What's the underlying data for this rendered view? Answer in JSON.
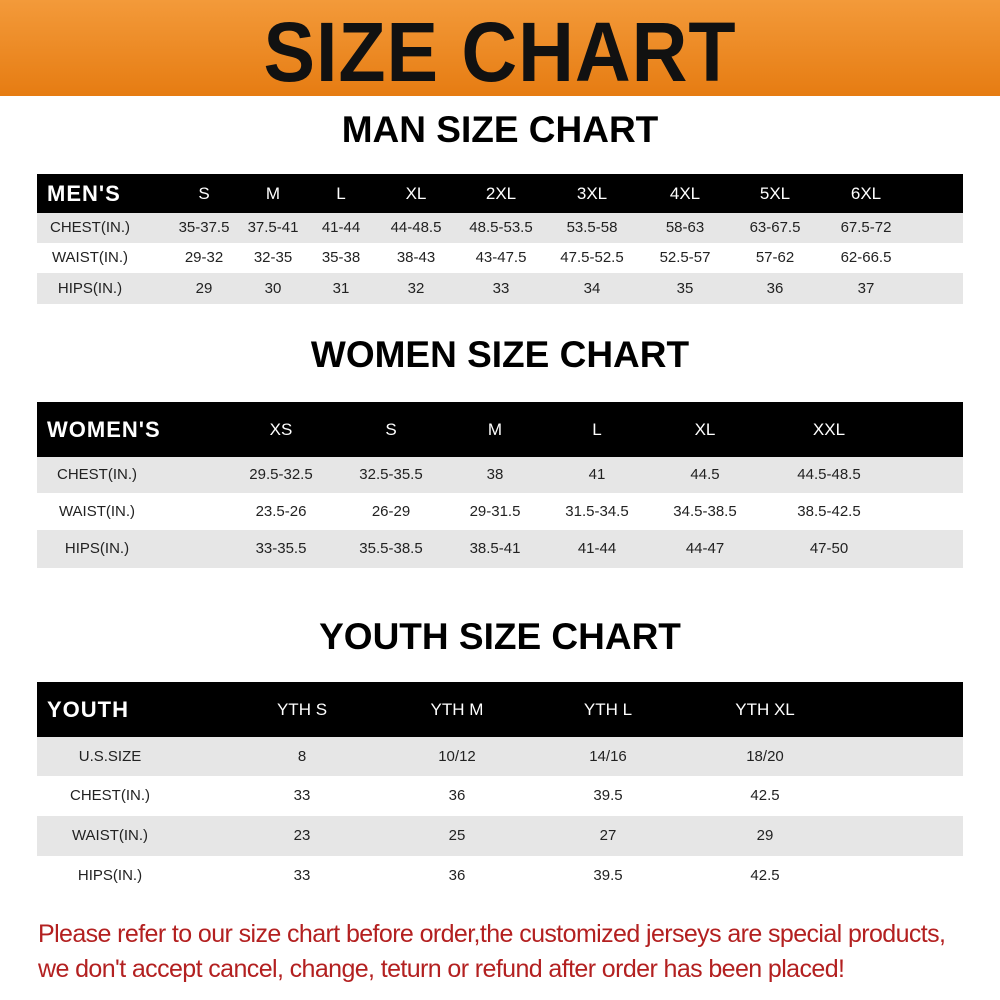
{
  "title": "SIZE CHART",
  "men": {
    "title": "MAN SIZE CHART",
    "header": [
      "MEN'S",
      "S",
      "M",
      "L",
      "XL",
      "2XL",
      "3XL",
      "4XL",
      "5XL",
      "6XL"
    ],
    "rows": [
      [
        "CHEST(IN.)",
        "35-37.5",
        "37.5-41",
        "41-44",
        "44-48.5",
        "48.5-53.5",
        "53.5-58",
        "58-63",
        "63-67.5",
        "67.5-72"
      ],
      [
        "WAIST(IN.)",
        "29-32",
        "32-35",
        "35-38",
        "38-43",
        "43-47.5",
        "47.5-52.5",
        "52.5-57",
        "57-62",
        "62-66.5"
      ],
      [
        "HIPS(IN.)",
        "29",
        "30",
        "31",
        "32",
        "33",
        "34",
        "35",
        "36",
        "37"
      ]
    ]
  },
  "women": {
    "title": "WOMEN SIZE CHART",
    "header": [
      "WOMEN'S",
      "XS",
      "S",
      "M",
      "L",
      "XL",
      "XXL"
    ],
    "rows": [
      [
        "CHEST(IN.)",
        "29.5-32.5",
        "32.5-35.5",
        "38",
        "41",
        "44.5",
        "44.5-48.5"
      ],
      [
        "WAIST(IN.)",
        "23.5-26",
        "26-29",
        "29-31.5",
        "31.5-34.5",
        "34.5-38.5",
        "38.5-42.5"
      ],
      [
        "HIPS(IN.)",
        "33-35.5",
        "35.5-38.5",
        "38.5-41",
        "41-44",
        "44-47",
        "47-50"
      ]
    ]
  },
  "youth": {
    "title": "YOUTH SIZE CHART",
    "header": [
      "YOUTH",
      "YTH S",
      "YTH M",
      "YTH L",
      "YTH XL"
    ],
    "rows": [
      [
        "U.S.SIZE",
        "8",
        "10/12",
        "14/16",
        "18/20"
      ],
      [
        "CHEST(IN.)",
        "33",
        "36",
        "39.5",
        "42.5"
      ],
      [
        "WAIST(IN.)",
        "23",
        "25",
        "27",
        "29"
      ],
      [
        "HIPS(IN.)",
        "33",
        "36",
        "39.5",
        "42.5"
      ]
    ]
  },
  "footer": {
    "line1": "Please refer to our size chart before order,the customized jerseys are special products,",
    "line2": "we don't accept cancel, change, teturn or refund after order has been placed!"
  },
  "colors": {
    "banner": "#ef8a22",
    "header_row": "#000000",
    "stripe": "#e6e6e6",
    "footer_text": "#b32020"
  }
}
